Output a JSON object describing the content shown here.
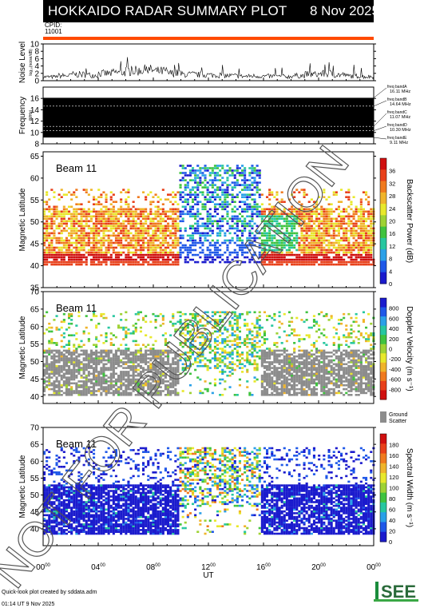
{
  "header": {
    "title": "HOKKAIDO RADAR SUMMARY PLOT",
    "date": "8 Nov 2025",
    "cpid_label": "CPID:",
    "cpid_value": "11001"
  },
  "footer": {
    "credit": "Quick-look plot created by sddata.adm",
    "timestamp": "01:14 UT  9 Nov 2025"
  },
  "watermark": "NOT FOR PUBLICATION",
  "logo_text": "ISEE",
  "colors": {
    "header_bg": "#000000",
    "orange_bar": "#ff4a00",
    "ground_scatter": "#8c8c8c"
  },
  "chart_data": [
    {
      "type": "line",
      "name": "noise",
      "ylabel": "Noise Level",
      "ylabel_sub": "log₁₀(noise/dB)",
      "ylim": [
        0,
        10
      ],
      "yticks": [
        "0",
        "2",
        "4",
        "6",
        "8",
        "10"
      ],
      "xlim": [
        0,
        24
      ],
      "values": [
        1.2,
        1.6,
        2.0,
        1.8,
        2.3,
        2.6,
        3.1,
        3.4,
        3.0,
        2.4,
        2.0,
        1.9,
        1.8,
        1.6,
        1.4,
        1.5,
        1.4,
        1.3,
        1.6,
        2.0,
        2.2,
        1.9,
        1.5,
        1.3
      ]
    },
    {
      "type": "area",
      "name": "frequency",
      "ylabel": "Frequency",
      "ylabel_sub": "(MHz)",
      "ylim": [
        8,
        18
      ],
      "yticks": [
        "8",
        "10",
        "12",
        "14",
        "16"
      ],
      "band_range": [
        9.11,
        16.11
      ],
      "bands": [
        {
          "label": "freq bandA",
          "value": "16.11 MHz"
        },
        {
          "label": "freq bandB",
          "value": "14.64 MHz"
        },
        {
          "label": "freq bandC",
          "value": "11.07 MHz"
        },
        {
          "label": "freq bandD",
          "value": "10.30 MHz"
        },
        {
          "label": "freq bandE",
          "value": "9.11 MHz"
        }
      ]
    },
    {
      "type": "heatmap",
      "name": "power",
      "title": "Beam 11",
      "ylabel": "Magnetic Latitude",
      "ylim": [
        35,
        66
      ],
      "yticks": [
        "35",
        "40",
        "45",
        "50",
        "55",
        "60",
        "65"
      ],
      "colorbar": {
        "label": "Backscatter Power (dB)",
        "ticks": [
          "0",
          "4",
          "8",
          "12",
          "16",
          "20",
          "24",
          "28",
          "32",
          "36"
        ],
        "colors": [
          "#1b1bcd",
          "#1f58e8",
          "#2aa0e8",
          "#27c7a0",
          "#3fc33f",
          "#9ed233",
          "#e8e82a",
          "#f0b42a",
          "#f07a1e",
          "#e8401a",
          "#d01010"
        ]
      }
    },
    {
      "type": "heatmap",
      "name": "velocity",
      "title": "Beam 11",
      "ylabel": "Magnetic Latitude",
      "ylim": [
        38,
        70
      ],
      "yticks": [
        "40",
        "45",
        "50",
        "55",
        "60",
        "65",
        "70"
      ],
      "colorbar": {
        "label": "Doppler Velocity (m s⁻¹)",
        "ticks": [
          "800",
          "600",
          "400",
          "200",
          "0",
          "-200",
          "-400",
          "-600",
          "-800"
        ],
        "colors": [
          "#1b1bcd",
          "#1f58e8",
          "#2aa0e8",
          "#27c7a0",
          "#3fc33f",
          "#9ed233",
          "#e8e82a",
          "#f0b42a",
          "#f07a1e",
          "#e8401a",
          "#d01010"
        ],
        "ground_label": "Ground",
        "scatter_label": "Scatter"
      }
    },
    {
      "type": "heatmap",
      "name": "width",
      "title": "Beam 11",
      "ylabel": "Magnetic Latitude",
      "ylim": [
        35,
        70
      ],
      "yticks": [
        "40",
        "45",
        "50",
        "55",
        "60",
        "65",
        "70"
      ],
      "xlabel": "UT",
      "xticks": [
        "00",
        "04",
        "08",
        "12",
        "16",
        "20",
        "00"
      ],
      "xtick_sup": "00",
      "colorbar": {
        "label": "Spectral Width (m s⁻¹)",
        "ticks": [
          "0",
          "20",
          "40",
          "60",
          "80",
          "100",
          "120",
          "140",
          "160",
          "180"
        ],
        "colors": [
          "#1b1bcd",
          "#1f58e8",
          "#2aa0e8",
          "#27c7a0",
          "#3fc33f",
          "#9ed233",
          "#e8e82a",
          "#f0b42a",
          "#f07a1e",
          "#e8401a",
          "#d01010"
        ]
      }
    }
  ]
}
